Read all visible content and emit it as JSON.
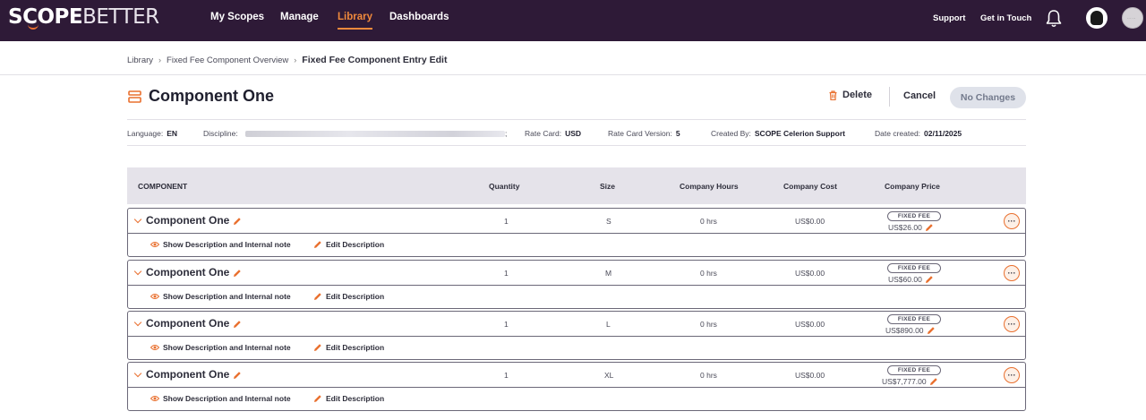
{
  "brand": {
    "logo_part1": "SCOPE",
    "logo_part2": "BETTER",
    "accent": "#e9702f",
    "nav_bg": "#2e1a37"
  },
  "nav": {
    "items": [
      {
        "label": "My Scopes",
        "active": false
      },
      {
        "label": "Manage",
        "active": false
      },
      {
        "label": "Library",
        "active": true
      },
      {
        "label": "Dashboards",
        "active": false
      }
    ],
    "support": "Support",
    "get_in_touch": "Get in Touch",
    "bell_icon": "bell-icon",
    "avatar_initials": "··· ···"
  },
  "breadcrumb": {
    "items": [
      "Library",
      "Fixed Fee Component Overview"
    ],
    "current": "Fixed Fee Component Entry Edit",
    "separator": "›"
  },
  "header": {
    "title": "Component One",
    "title_icon": "component-icon",
    "delete_label": "Delete",
    "cancel_label": "Cancel",
    "no_changes_label": "No Changes"
  },
  "meta": {
    "language_label": "Language:",
    "language_value": "EN",
    "discipline_label": "Discipline:",
    "discipline_suffix": ";",
    "rate_card_label": "Rate Card:",
    "rate_card_value": "USD",
    "rate_card_version_label": "Rate Card Version:",
    "rate_card_version_value": "5",
    "created_by_label": "Created By:",
    "created_by_value": "SCOPE Celerion Support",
    "date_created_label": "Date created:",
    "date_created_value": "02/11/2025"
  },
  "table": {
    "headers": {
      "component": "COMPONENT",
      "quantity": "Quantity",
      "size": "Size",
      "company_hours": "Company Hours",
      "company_cost": "Company Cost",
      "company_price": "Company Price"
    },
    "rows": [
      {
        "name": "Component One",
        "quantity": "1",
        "size": "S",
        "hours": "0 hrs",
        "cost": "US$0.00",
        "badge": "FIXED FEE",
        "price": "US$26.00"
      },
      {
        "name": "Component One",
        "quantity": "1",
        "size": "M",
        "hours": "0 hrs",
        "cost": "US$0.00",
        "badge": "FIXED FEE",
        "price": "US$60.00"
      },
      {
        "name": "Component One",
        "quantity": "1",
        "size": "L",
        "hours": "0 hrs",
        "cost": "US$0.00",
        "badge": "FIXED FEE",
        "price": "US$890.00"
      },
      {
        "name": "Component One",
        "quantity": "1",
        "size": "XL",
        "hours": "0 hrs",
        "cost": "US$0.00",
        "badge": "FIXED FEE",
        "price": "US$7,777.00"
      }
    ],
    "show_description_label": "Show Description and Internal note",
    "edit_description_label": "Edit Description",
    "more_label": "···"
  }
}
